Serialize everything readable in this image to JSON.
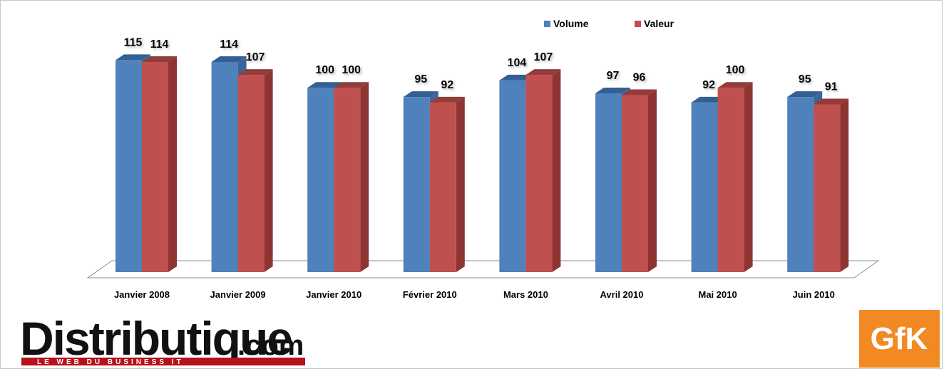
{
  "chart_data": {
    "type": "bar",
    "categories": [
      "Janvier 2008",
      "Janvier 2009",
      "Janvier 2010",
      "Février 2010",
      "Mars 2010",
      "Avril 2010",
      "Mai 2010",
      "Juin 2010"
    ],
    "series": [
      {
        "name": "Volume",
        "values": [
          115,
          114,
          100,
          95,
          104,
          97,
          92,
          95
        ]
      },
      {
        "name": "Valeur",
        "values": [
          114,
          107,
          100,
          92,
          107,
          96,
          100,
          91
        ]
      }
    ],
    "grid": false,
    "legend_position": "top-center",
    "data_labels": true,
    "three_d": true
  },
  "colors": {
    "volume": "#4f81bd",
    "valeur": "#c0504d",
    "gfk": "#f18a22",
    "brand_red": "#b5121b"
  },
  "logos": {
    "distributique": {
      "name": "Distributique",
      "suffix": ".com",
      "tagline": "LE WEB DU BUSINESS IT"
    },
    "gfk": {
      "name": "GfK"
    }
  }
}
